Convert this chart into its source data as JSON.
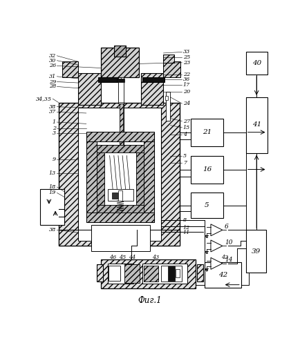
{
  "title": "Фиг.1",
  "bg_color": "#ffffff",
  "fig_width": 4.35,
  "fig_height": 5.0,
  "dpi": 100
}
